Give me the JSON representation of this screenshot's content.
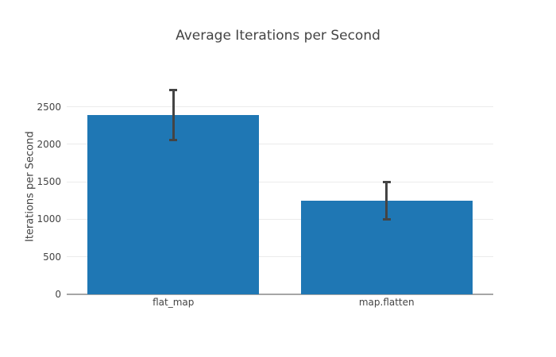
{
  "chart_data": {
    "type": "bar",
    "title": "Average Iterations per Second",
    "xlabel": "",
    "ylabel": "Iterations per Second",
    "categories": [
      "flat_map",
      "map.flatten"
    ],
    "values": [
      2390,
      1250
    ],
    "error_bars": [
      345,
      265
    ],
    "yticks": [
      0,
      500,
      1000,
      1500,
      2000,
      2500
    ],
    "ylim": [
      0,
      2865
    ],
    "grid": true,
    "legend": false,
    "colors": {
      "bar": "#1f77b4",
      "error": "#444444",
      "grid": "#ebebeb",
      "axis_line": "#a6a6a6",
      "text": "#444444",
      "background": "#ffffff"
    }
  }
}
